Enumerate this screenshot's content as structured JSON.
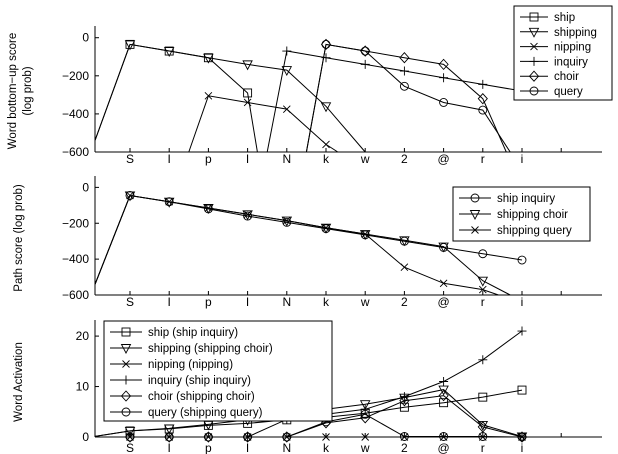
{
  "chart_data": [
    {
      "type": "line",
      "ylabel_lines": [
        "Word bottom−up score",
        "(log prob)"
      ],
      "x_ticks": [
        "S",
        "I",
        "p",
        "I",
        "N",
        "k",
        "w",
        "2",
        "@",
        "r",
        "i"
      ],
      "yticks": [
        0,
        -200,
        -400,
        -600
      ],
      "ylim": [
        -600,
        30
      ],
      "legend_position": "top-right",
      "series": [
        {
          "name": "ship",
          "marker": "square",
          "points": [
            [
              -1,
              -600
            ],
            [
              0,
              -35
            ],
            [
              1,
              -70
            ],
            [
              2,
              -105
            ],
            [
              3,
              -290
            ],
            [
              3.25,
              -600
            ]
          ]
        },
        {
          "name": "shipping",
          "marker": "triangle",
          "points": [
            [
              -1,
              -600
            ],
            [
              0,
              -35
            ],
            [
              1,
              -70
            ],
            [
              2,
              -105
            ],
            [
              3,
              -140
            ],
            [
              4,
              -170
            ],
            [
              5,
              -360
            ],
            [
              6,
              -600
            ]
          ]
        },
        {
          "name": "nipping",
          "marker": "x",
          "points": [
            [
              1.5,
              -600
            ],
            [
              2,
              -305
            ],
            [
              3,
              -340
            ],
            [
              4,
              -375
            ],
            [
              5,
              -560
            ],
            [
              5.3,
              -600
            ]
          ]
        },
        {
          "name": "inquiry",
          "marker": "plus",
          "points": [
            [
              3.5,
              -600
            ],
            [
              4,
              -70
            ],
            [
              5,
              -105
            ],
            [
              6,
              -140
            ],
            [
              7,
              -175
            ],
            [
              8,
              -210
            ],
            [
              9,
              -245
            ],
            [
              10,
              -280
            ]
          ]
        },
        {
          "name": "choir",
          "marker": "diamond",
          "points": [
            [
              4.5,
              -600
            ],
            [
              5,
              -35
            ],
            [
              6,
              -70
            ],
            [
              7,
              -105
            ],
            [
              8,
              -140
            ],
            [
              9,
              -320
            ],
            [
              9.6,
              -600
            ]
          ]
        },
        {
          "name": "query",
          "marker": "circle",
          "points": [
            [
              4.5,
              -600
            ],
            [
              5,
              -35
            ],
            [
              6,
              -70
            ],
            [
              7,
              -255
            ],
            [
              8,
              -340
            ],
            [
              9,
              -380
            ],
            [
              9.7,
              -600
            ]
          ]
        }
      ]
    },
    {
      "type": "line",
      "ylabel_lines": [
        "Path score (log prob)"
      ],
      "x_ticks": [
        "S",
        "I",
        "p",
        "I",
        "N",
        "k",
        "w",
        "2",
        "@",
        "r",
        "i"
      ],
      "yticks": [
        0,
        -200,
        -400,
        -600
      ],
      "ylim": [
        -600,
        30
      ],
      "legend_position": "top-right",
      "series": [
        {
          "name": "ship inquiry",
          "marker": "circle",
          "points": [
            [
              -1,
              -600
            ],
            [
              0,
              -45
            ],
            [
              1,
              -80
            ],
            [
              2,
              -120
            ],
            [
              3,
              -160
            ],
            [
              4,
              -195
            ],
            [
              5,
              -230
            ],
            [
              6,
              -265
            ],
            [
              7,
              -300
            ],
            [
              8,
              -335
            ],
            [
              9,
              -370
            ],
            [
              10,
              -405
            ]
          ]
        },
        {
          "name": "shipping choir",
          "marker": "triangle",
          "points": [
            [
              -1,
              -600
            ],
            [
              0,
              -45
            ],
            [
              1,
              -80
            ],
            [
              2,
              -115
            ],
            [
              3,
              -150
            ],
            [
              4,
              -185
            ],
            [
              5,
              -225
            ],
            [
              6,
              -260
            ],
            [
              7,
              -295
            ],
            [
              8,
              -330
            ],
            [
              9,
              -520
            ],
            [
              9.7,
              -600
            ]
          ]
        },
        {
          "name": "shipping query",
          "marker": "x",
          "points": [
            [
              -1,
              -600
            ],
            [
              0,
              -45
            ],
            [
              1,
              -80
            ],
            [
              2,
              -115
            ],
            [
              3,
              -150
            ],
            [
              4,
              -185
            ],
            [
              5,
              -225
            ],
            [
              6,
              -260
            ],
            [
              7,
              -445
            ],
            [
              8,
              -535
            ],
            [
              9,
              -570
            ],
            [
              9.4,
              -600
            ]
          ]
        }
      ]
    },
    {
      "type": "line",
      "ylabel_lines": [
        "Word Activation"
      ],
      "x_ticks": [
        "S",
        "I",
        "p",
        "I",
        "N",
        "k",
        "w",
        "2",
        "@",
        "r",
        "i"
      ],
      "yticks": [
        0,
        10,
        20
      ],
      "ylim": [
        0,
        22
      ],
      "legend_position": "top-left",
      "series": [
        {
          "name": "ship (ship inquiry)",
          "marker": "square",
          "points": [
            [
              -1,
              0
            ],
            [
              0,
              1.2
            ],
            [
              1,
              1.6
            ],
            [
              2,
              2.3
            ],
            [
              3,
              2.7
            ],
            [
              4,
              3.4
            ],
            [
              5,
              3.9
            ],
            [
              6,
              4.7
            ],
            [
              7,
              5.9
            ],
            [
              8,
              6.8
            ],
            [
              9,
              7.9
            ],
            [
              10,
              9.3
            ]
          ]
        },
        {
          "name": "shipping (shipping choir)",
          "marker": "triangle",
          "points": [
            [
              -1,
              0
            ],
            [
              0,
              1.2
            ],
            [
              1,
              1.7
            ],
            [
              2,
              2.5
            ],
            [
              3,
              3.4
            ],
            [
              4,
              4.3
            ],
            [
              5,
              5.5
            ],
            [
              6,
              6.5
            ],
            [
              7,
              7.8
            ],
            [
              8,
              9.4
            ],
            [
              9,
              2.4
            ],
            [
              10,
              0.1
            ]
          ]
        },
        {
          "name": "nipping (nipping)",
          "marker": "x",
          "points": [
            [
              -1,
              0
            ],
            [
              0,
              0
            ],
            [
              1,
              0
            ],
            [
              2,
              0
            ],
            [
              3,
              0
            ],
            [
              4,
              0
            ],
            [
              5,
              0
            ],
            [
              6,
              0
            ],
            [
              7,
              0
            ],
            [
              8,
              0
            ],
            [
              9,
              0
            ],
            [
              10,
              0
            ]
          ]
        },
        {
          "name": "inquiry (ship inquiry)",
          "marker": "plus",
          "points": [
            [
              3,
              0
            ],
            [
              4,
              3.5
            ],
            [
              5,
              4.5
            ],
            [
              6,
              5.5
            ],
            [
              7,
              8.0
            ],
            [
              8,
              11.0
            ],
            [
              9,
              15.3
            ],
            [
              10,
              21.0
            ]
          ]
        },
        {
          "name": "choir (shipping choir)",
          "marker": "diamond",
          "points": [
            [
              -1,
              0
            ],
            [
              0,
              0
            ],
            [
              1,
              0
            ],
            [
              2,
              0
            ],
            [
              3,
              0
            ],
            [
              4,
              0
            ],
            [
              5,
              2.8
            ],
            [
              6,
              3.8
            ],
            [
              7,
              7.2
            ],
            [
              8,
              8.2
            ],
            [
              9,
              2.0
            ],
            [
              10,
              0
            ]
          ]
        },
        {
          "name": "query (shipping query)",
          "marker": "circle",
          "points": [
            [
              -1,
              0
            ],
            [
              0,
              0
            ],
            [
              1,
              0
            ],
            [
              2,
              0
            ],
            [
              3,
              0
            ],
            [
              4,
              0
            ],
            [
              5,
              3.0
            ],
            [
              6,
              4.5
            ],
            [
              7,
              0.1
            ],
            [
              8,
              0.1
            ],
            [
              9,
              0.1
            ],
            [
              10,
              0
            ]
          ]
        }
      ]
    }
  ]
}
